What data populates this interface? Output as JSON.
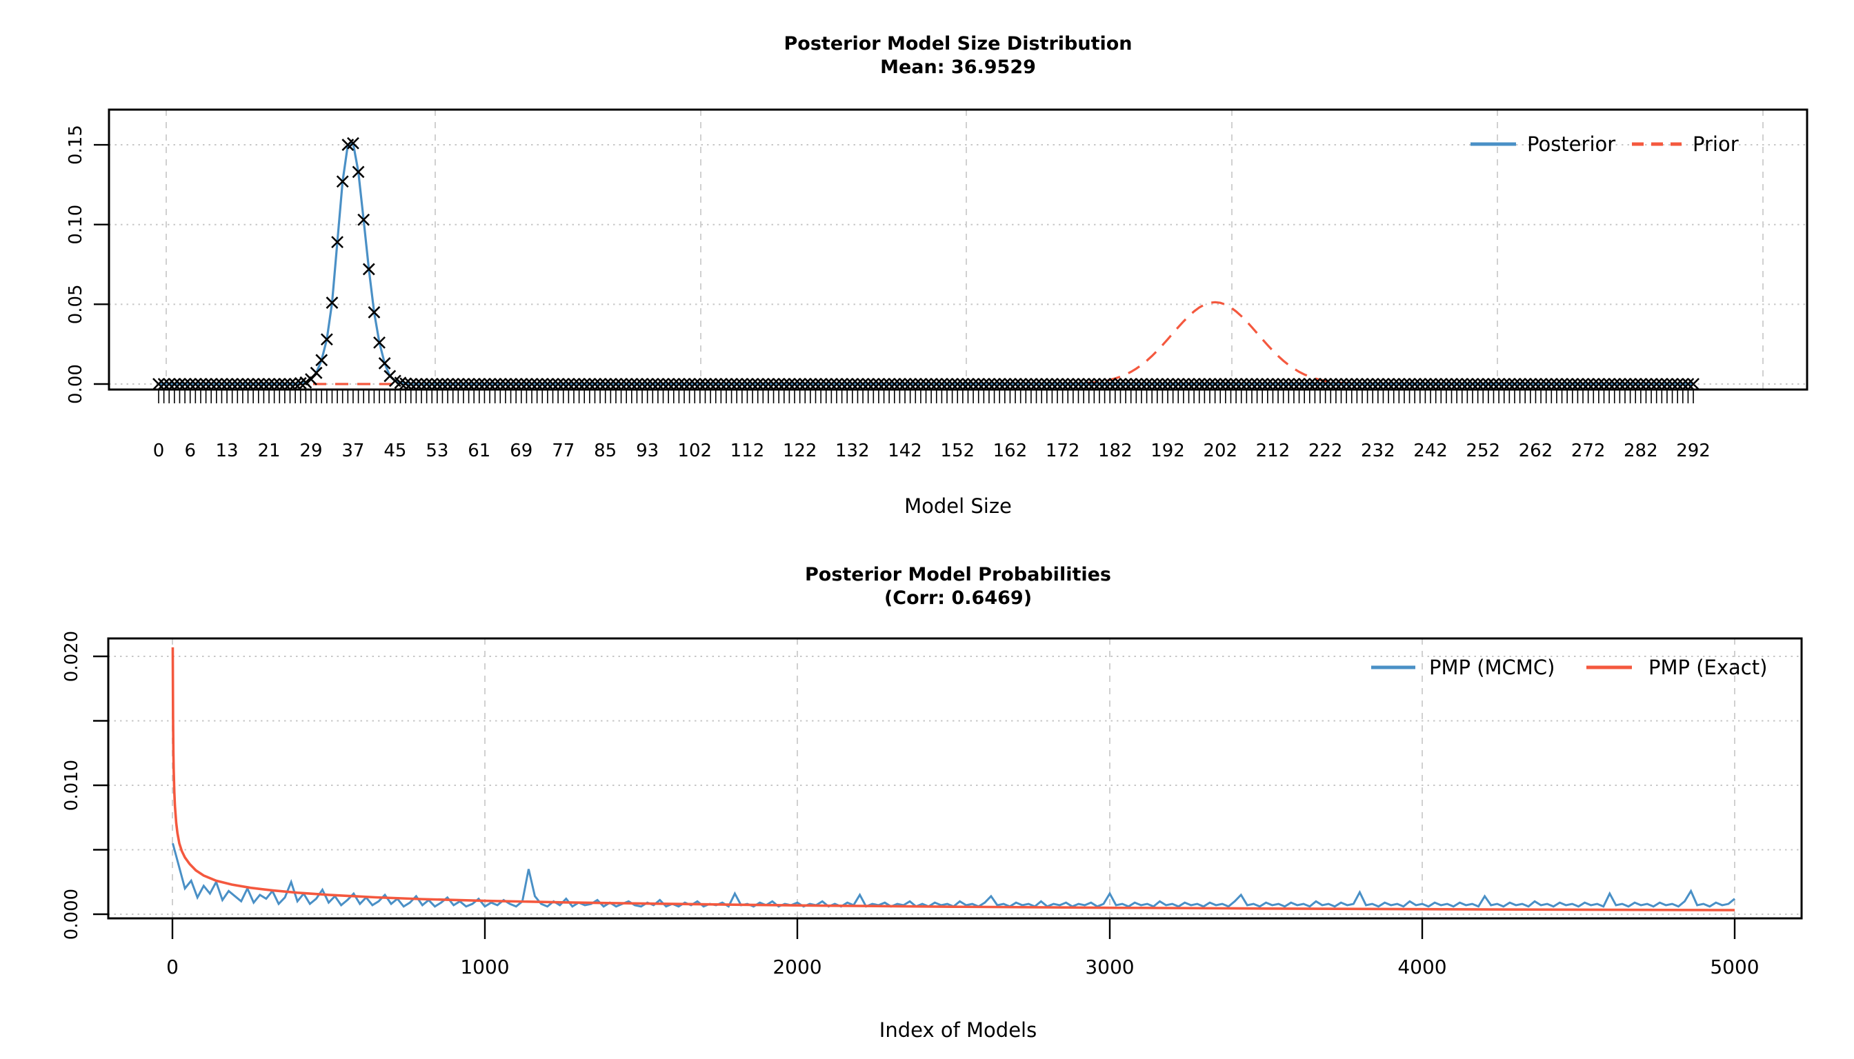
{
  "colors": {
    "posterior_blue": "#4a90c6",
    "prior_red": "#f4583e",
    "grid_gray": "#c7c7c7",
    "axis_black": "#000000",
    "background": "#ffffff"
  },
  "chart_data": [
    {
      "type": "line",
      "title": "Posterior Model Size Distribution",
      "subtitle": "Mean: 36.9529",
      "xlabel": "Model Size",
      "ylabel": "",
      "legend_position": "top-right",
      "grid": "on-dotted",
      "x_range_categories": [
        0,
        292
      ],
      "ylim": [
        0,
        0.172
      ],
      "x_ticks": [
        0,
        6,
        13,
        21,
        29,
        37,
        45,
        53,
        61,
        69,
        77,
        85,
        93,
        102,
        112,
        122,
        132,
        142,
        152,
        162,
        172,
        182,
        192,
        202,
        212,
        222,
        232,
        242,
        252,
        262,
        272,
        282,
        292
      ],
      "y_ticks": [
        0,
        0.05,
        0.1,
        0.15
      ],
      "y_tick_labels": [
        "0.00",
        "0.05",
        "0.10",
        "0.15"
      ],
      "series": [
        {
          "name": "Posterior",
          "style": "solid",
          "marker": "x",
          "color": "#4a90c6",
          "note": "discrete posterior model-size probabilities; x markers at every size 0..292, sizes not listed have probability ~0",
          "nonzero_probs": {
            "27": 0.0005,
            "28": 0.001,
            "29": 0.003,
            "30": 0.007,
            "31": 0.015,
            "32": 0.028,
            "33": 0.051,
            "34": 0.089,
            "35": 0.127,
            "36": 0.15,
            "37": 0.151,
            "38": 0.133,
            "39": 0.103,
            "40": 0.072,
            "41": 0.045,
            "42": 0.026,
            "43": 0.013,
            "44": 0.005,
            "45": 0.002,
            "46": 0.0008,
            "47": 0.0003
          }
        },
        {
          "name": "Prior",
          "style": "dashed",
          "color": "#f4583e",
          "note": "bell-shaped prior model-size distribution",
          "shape": "gaussian",
          "center": 201,
          "sd": 8.2,
          "peak": 0.0513
        }
      ]
    },
    {
      "type": "line",
      "title": "Posterior Model Probabilities",
      "subtitle": "(Corr: 0.6469)",
      "xlabel": "Index of Models",
      "ylabel": "",
      "legend_position": "top-right",
      "grid": "on-dotted",
      "xlim": [
        0,
        5000
      ],
      "ylim": [
        0,
        0.0214
      ],
      "x_ticks": [
        0,
        1000,
        2000,
        3000,
        4000,
        5000
      ],
      "y_ticks_all": [
        0,
        0.005,
        0.01,
        0.015,
        0.02
      ],
      "y_tick_labels": [
        "0.000",
        "0.010",
        "0.020"
      ],
      "y_tick_label_values": [
        0,
        0.01,
        0.02
      ],
      "series": [
        {
          "name": "PMP (MCMC)",
          "style": "solid",
          "color": "#4a90c6",
          "note": "noisy MCMC posterior model probabilities by model rank; values are prob*10000, sampled every 20 models (first point is model index 1)",
          "x_step": 20,
          "values_x10000": [
            55,
            38,
            20,
            26,
            13,
            22,
            16,
            25,
            11,
            18,
            14,
            10,
            20,
            9,
            15,
            12,
            18,
            8,
            13,
            25,
            10,
            16,
            8,
            12,
            19,
            9,
            14,
            7,
            11,
            16,
            8,
            13,
            7,
            10,
            15,
            8,
            12,
            6,
            9,
            14,
            7,
            11,
            6,
            9,
            13,
            7,
            10,
            6,
            8,
            12,
            6,
            9,
            7,
            11,
            8,
            6,
            10,
            35,
            14,
            8,
            6,
            10,
            7,
            12,
            6,
            9,
            7,
            8,
            11,
            6,
            9,
            6,
            8,
            10,
            7,
            6,
            9,
            7,
            11,
            6,
            8,
            6,
            9,
            7,
            10,
            6,
            8,
            7,
            9,
            6,
            16,
            7,
            8,
            6,
            9,
            7,
            10,
            6,
            8,
            7,
            9,
            6,
            8,
            7,
            10,
            6,
            8,
            6,
            9,
            7,
            15,
            6,
            8,
            7,
            9,
            6,
            8,
            7,
            10,
            6,
            8,
            6,
            9,
            7,
            8,
            6,
            10,
            7,
            8,
            6,
            9,
            14,
            7,
            8,
            6,
            9,
            7,
            8,
            6,
            10,
            6,
            8,
            7,
            9,
            6,
            8,
            7,
            9,
            6,
            8,
            16,
            7,
            8,
            6,
            9,
            7,
            8,
            6,
            10,
            7,
            8,
            6,
            9,
            7,
            8,
            6,
            9,
            7,
            8,
            6,
            10,
            15,
            7,
            8,
            6,
            9,
            7,
            8,
            6,
            9,
            7,
            8,
            6,
            10,
            7,
            8,
            6,
            9,
            7,
            8,
            17,
            7,
            8,
            6,
            9,
            7,
            8,
            6,
            10,
            7,
            8,
            6,
            9,
            7,
            8,
            6,
            9,
            7,
            8,
            6,
            14,
            7,
            8,
            6,
            9,
            7,
            8,
            6,
            10,
            7,
            8,
            6,
            9,
            7,
            8,
            6,
            9,
            7,
            8,
            6,
            16,
            7,
            8,
            6,
            9,
            7,
            8,
            6,
            9,
            7,
            8,
            6,
            10,
            18,
            7,
            8,
            6,
            9,
            7,
            8,
            12
          ]
        },
        {
          "name": "PMP (Exact)",
          "style": "solid",
          "color": "#f4583e",
          "note": "smooth exact PMP decay curve, points are [model index, probability]",
          "points": [
            [
              1,
              0.0207
            ],
            [
              2,
              0.0152
            ],
            [
              3,
              0.0126
            ],
            [
              4,
              0.0112
            ],
            [
              6,
              0.0095
            ],
            [
              8,
              0.0084
            ],
            [
              12,
              0.0071
            ],
            [
              16,
              0.0063
            ],
            [
              22,
              0.0055
            ],
            [
              30,
              0.0049
            ],
            [
              40,
              0.0044
            ],
            [
              55,
              0.0039
            ],
            [
              75,
              0.0034
            ],
            [
              100,
              0.003
            ],
            [
              140,
              0.0026
            ],
            [
              190,
              0.0023
            ],
            [
              250,
              0.00205
            ],
            [
              320,
              0.00185
            ],
            [
              400,
              0.00167
            ],
            [
              500,
              0.0015
            ],
            [
              650,
              0.00131
            ],
            [
              800,
              0.00117
            ],
            [
              1000,
              0.00104
            ],
            [
              1250,
              0.00092
            ],
            [
              1500,
              0.00083
            ],
            [
              1800,
              0.00074
            ],
            [
              2100,
              0.00066
            ],
            [
              2500,
              0.00058
            ],
            [
              3000,
              0.0005
            ],
            [
              3500,
              0.00044
            ],
            [
              4000,
              0.00039
            ],
            [
              4500,
              0.00035
            ],
            [
              5000,
              0.00032
            ]
          ]
        }
      ]
    }
  ]
}
